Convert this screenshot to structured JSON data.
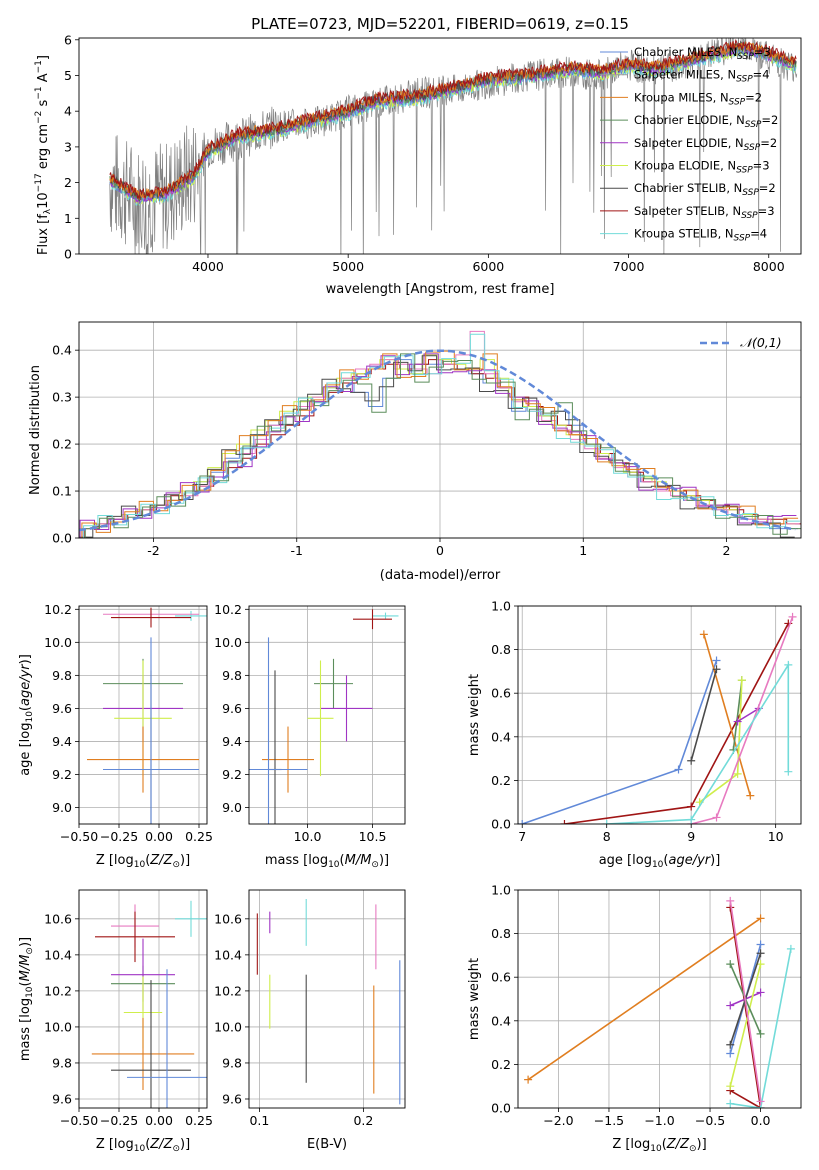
{
  "figure": {
    "title": "PLATE=0723, MJD=52201, FIBERID=0619, z=0.15"
  },
  "colors": {
    "Chabrier MILES": "#6189d8",
    "Salpeter MILES": "#9a9a9a",
    "Kroupa MILES": "#e07e20",
    "Chabrier ELODIE": "#5b8d5b",
    "Salpeter ELODIE": "#a035c4",
    "Kroupa ELODIE": "#cfee4c",
    "Chabrier STELIB": "#4a4a4a",
    "Salpeter STELIB": "#a01515",
    "Kroupa STELIB": "#72dbd9",
    "Pink": "#e77ac0",
    "Data": "#808080"
  },
  "chart_data": [
    {
      "type": "line",
      "title": "PLATE=0723, MJD=52201, FIBERID=0619, z=0.15",
      "xlabel": "wavelength [Angstrom, rest frame]",
      "ylabel": "Flux [f_λ 10^-17 erg cm^-2 s^-1 A^-1]",
      "xlim": [
        3080,
        8230
      ],
      "ylim": [
        0,
        6.05
      ],
      "xticks": [
        4000,
        5000,
        6000,
        7000,
        8000
      ],
      "yticks": [
        0,
        1,
        2,
        3,
        4,
        5,
        6
      ],
      "legend": "top-right",
      "legend_entries": [
        "Chabrier MILES, N_SSP=3",
        "Salpeter MILES, N_SSP=4",
        "Kroupa MILES, N_SSP=2",
        "Chabrier ELODIE, N_SSP=2",
        "Salpeter ELODIE, N_SSP=2",
        "Kroupa ELODIE, N_SSP=3",
        "Chabrier STELIB, N_SSP=2",
        "Salpeter STELIB, N_SSP=3",
        "Kroupa STELIB, N_SSP=4"
      ],
      "series": [
        {
          "name": "data",
          "x": [
            3300,
            3500,
            3700,
            3900,
            4000,
            4200,
            4500,
            4800,
            5000,
            5200,
            5500,
            5800,
            6000,
            6300,
            6600,
            6800,
            7000,
            7200,
            7400,
            7600,
            7800,
            8000,
            8200
          ],
          "y": [
            2.0,
            1.5,
            1.6,
            2.3,
            3.0,
            3.2,
            3.6,
            3.7,
            4.0,
            4.2,
            4.5,
            4.6,
            4.8,
            5.0,
            5.1,
            5.0,
            5.3,
            5.1,
            5.3,
            5.6,
            5.9,
            5.5,
            5.2
          ]
        },
        {
          "name": "model",
          "x": [
            3300,
            3500,
            3700,
            3900,
            4000,
            4200,
            4500,
            4800,
            5000,
            5200,
            5500,
            5800,
            6000,
            6300,
            6600,
            6800,
            7000,
            7200,
            7400,
            7600,
            7800,
            8000,
            8200
          ],
          "y": [
            2.1,
            1.6,
            1.7,
            2.2,
            2.9,
            3.3,
            3.5,
            3.8,
            4.0,
            4.3,
            4.4,
            4.7,
            4.9,
            5.0,
            5.2,
            5.1,
            5.3,
            5.2,
            5.4,
            5.6,
            5.8,
            5.6,
            5.3
          ]
        }
      ]
    },
    {
      "type": "bar",
      "xlabel": "(data-model)/error",
      "ylabel": "Normed distribution",
      "xlim": [
        -2.52,
        2.52
      ],
      "ylim": [
        0,
        0.46
      ],
      "xticks": [
        -2,
        -1,
        0,
        1,
        2
      ],
      "yticks": [
        0.0,
        0.1,
        0.2,
        0.3,
        0.4
      ],
      "grid": true,
      "legend": "top-right",
      "legend_entries": [
        "𝒩(0,1)"
      ],
      "bin_centers": [
        -2.45,
        -2.35,
        -2.25,
        -2.15,
        -2.05,
        -1.95,
        -1.85,
        -1.75,
        -1.65,
        -1.55,
        -1.45,
        -1.35,
        -1.25,
        -1.15,
        -1.05,
        -0.95,
        -0.85,
        -0.75,
        -0.65,
        -0.55,
        -0.45,
        -0.35,
        -0.25,
        -0.15,
        -0.05,
        0.05,
        0.15,
        0.25,
        0.35,
        0.45,
        0.55,
        0.65,
        0.75,
        0.85,
        0.95,
        1.05,
        1.15,
        1.25,
        1.35,
        1.45,
        1.55,
        1.65,
        1.75,
        1.85,
        1.95,
        2.05,
        2.15,
        2.25,
        2.35,
        2.45
      ],
      "series": [
        {
          "name": "Chabrier MILES",
          "values": [
            0.02,
            0.03,
            0.04,
            0.05,
            0.06,
            0.07,
            0.08,
            0.1,
            0.12,
            0.14,
            0.17,
            0.19,
            0.22,
            0.24,
            0.26,
            0.28,
            0.3,
            0.32,
            0.33,
            0.31,
            0.28,
            0.34,
            0.38,
            0.35,
            0.37,
            0.37,
            0.36,
            0.35,
            0.33,
            0.32,
            0.27,
            0.28,
            0.26,
            0.27,
            0.24,
            0.2,
            0.18,
            0.16,
            0.14,
            0.12,
            0.11,
            0.1,
            0.08,
            0.07,
            0.06,
            0.05,
            0.04,
            0.03,
            0.02,
            0.02
          ]
        },
        {
          "name": "Salpeter STELIB",
          "values": [
            0.02,
            0.03,
            0.04,
            0.05,
            0.06,
            0.07,
            0.09,
            0.1,
            0.11,
            0.13,
            0.15,
            0.17,
            0.2,
            0.22,
            0.24,
            0.26,
            0.29,
            0.31,
            0.33,
            0.35,
            0.36,
            0.37,
            0.36,
            0.37,
            0.38,
            0.37,
            0.36,
            0.35,
            0.34,
            0.32,
            0.3,
            0.28,
            0.26,
            0.24,
            0.22,
            0.2,
            0.18,
            0.16,
            0.14,
            0.12,
            0.11,
            0.1,
            0.09,
            0.08,
            0.07,
            0.06,
            0.05,
            0.04,
            0.04,
            0.03
          ]
        },
        {
          "name": "Kroupa ELODIE",
          "values": [
            0.02,
            0.03,
            0.04,
            0.05,
            0.06,
            0.07,
            0.08,
            0.1,
            0.12,
            0.15,
            0.18,
            0.2,
            0.23,
            0.25,
            0.27,
            0.29,
            0.3,
            0.32,
            0.34,
            0.35,
            0.36,
            0.38,
            0.36,
            0.35,
            0.39,
            0.38,
            0.37,
            0.36,
            0.38,
            0.34,
            0.3,
            0.28,
            0.26,
            0.24,
            0.22,
            0.2,
            0.18,
            0.16,
            0.14,
            0.13,
            0.12,
            0.1,
            0.09,
            0.08,
            0.07,
            0.06,
            0.05,
            0.04,
            0.03,
            0.03
          ]
        },
        {
          "name": "Pink",
          "values": [
            0.02,
            0.03,
            0.04,
            0.05,
            0.06,
            0.07,
            0.08,
            0.09,
            0.11,
            0.13,
            0.16,
            0.18,
            0.21,
            0.24,
            0.26,
            0.28,
            0.3,
            0.33,
            0.34,
            0.36,
            0.37,
            0.38,
            0.37,
            0.36,
            0.35,
            0.37,
            0.39,
            0.44,
            0.35,
            0.32,
            0.29,
            0.27,
            0.25,
            0.23,
            0.21,
            0.19,
            0.17,
            0.15,
            0.13,
            0.12,
            0.1,
            0.09,
            0.08,
            0.07,
            0.06,
            0.05,
            0.04,
            0.04,
            0.03,
            0.03
          ]
        }
      ],
      "reference_curve": {
        "name": "𝒩(0,1)",
        "kind": "gaussian",
        "mean": 0,
        "sigma": 1
      }
    },
    {
      "type": "scatter",
      "xlabel": "Z [log10(Z/Z⊙)]",
      "ylabel": "age [log10(age/yr)]",
      "xlim": [
        -0.5,
        0.3
      ],
      "ylim": [
        8.9,
        10.22
      ],
      "xticks": [
        -0.5,
        -0.25,
        0.0,
        0.25
      ],
      "xtick_labels": [
        "−0.50",
        "−0.25",
        "0.00",
        "0.25"
      ],
      "yticks": [
        9.0,
        9.2,
        9.4,
        9.6,
        9.8,
        10.0,
        10.2
      ],
      "grid": true
    },
    {
      "type": "scatter",
      "xlabel": "mass [log10(M/M⊙)]",
      "ylabel": "",
      "xlim": [
        9.55,
        10.75
      ],
      "ylim": [
        8.9,
        10.22
      ],
      "xticks": [
        10.0,
        10.5
      ],
      "xtick_labels": [
        "10.0",
        "10.5"
      ],
      "yticks": [
        9.0,
        9.2,
        9.4,
        9.6,
        9.8,
        10.0,
        10.2
      ],
      "grid": true
    },
    {
      "type": "line",
      "xlabel": "age [log10(age/yr)]",
      "ylabel": "mass weight",
      "xlim": [
        6.95,
        10.3
      ],
      "ylim": [
        0.0,
        1.0
      ],
      "xticks": [
        7,
        8,
        9,
        10
      ],
      "xtick_labels": [
        "7",
        "8",
        "9",
        "10"
      ],
      "yticks": [
        0.0,
        0.2,
        0.4,
        0.6,
        0.8,
        1.0
      ],
      "grid": true,
      "series": [
        {
          "name": "Chabrier MILES",
          "x": [
            7.0,
            8.85,
            9.3
          ],
          "y": [
            0.0,
            0.25,
            0.75
          ]
        },
        {
          "name": "Salpeter STELIB",
          "x": [
            7.5,
            9.0,
            10.15
          ],
          "y": [
            0.0,
            0.08,
            0.92
          ]
        },
        {
          "name": "Kroupa MILES",
          "x": [
            9.15,
            9.7
          ],
          "y": [
            0.87,
            0.13
          ]
        },
        {
          "name": "Chabrier STELIB",
          "x": [
            9.0,
            9.3
          ],
          "y": [
            0.29,
            0.71
          ]
        },
        {
          "name": "Chabrier ELODIE",
          "x": [
            9.5,
            9.6
          ],
          "y": [
            0.34,
            0.66
          ]
        },
        {
          "name": "Kroupa ELODIE",
          "x": [
            9.1,
            9.55,
            9.6
          ],
          "y": [
            0.1,
            0.23,
            0.66
          ]
        },
        {
          "name": "Salpeter ELODIE",
          "x": [
            9.55,
            9.8
          ],
          "y": [
            0.47,
            0.53
          ]
        },
        {
          "name": "Pink",
          "x": [
            9.0,
            9.3,
            10.2
          ],
          "y": [
            0.0,
            0.03,
            0.95
          ]
        },
        {
          "name": "Kroupa STELIB",
          "x": [
            8.0,
            9.0,
            10.15,
            10.15
          ],
          "y": [
            0.0,
            0.02,
            0.73,
            0.24
          ]
        }
      ]
    },
    {
      "type": "scatter",
      "xlabel": "Z [log10(Z/Z⊙)]",
      "ylabel": "mass [log10(M/M⊙)]",
      "xlim": [
        -0.5,
        0.3
      ],
      "ylim": [
        9.55,
        10.76
      ],
      "xticks": [
        -0.5,
        -0.25,
        0.0,
        0.25
      ],
      "xtick_labels": [
        "−0.50",
        "−0.25",
        "0.00",
        "0.25"
      ],
      "yticks": [
        9.6,
        9.8,
        10.0,
        10.2,
        10.4,
        10.6
      ],
      "grid": true
    },
    {
      "type": "scatter",
      "xlabel": "E(B-V)",
      "ylabel": "",
      "xlim": [
        0.09,
        0.24
      ],
      "ylim": [
        9.55,
        10.76
      ],
      "xticks": [
        0.1,
        0.2
      ],
      "xtick_labels": [
        "0.1",
        "0.2"
      ],
      "yticks": [
        9.6,
        9.8,
        10.0,
        10.2,
        10.4,
        10.6
      ],
      "grid": true
    },
    {
      "type": "line",
      "xlabel": "Z [log10(Z/Z⊙)]",
      "ylabel": "mass weight",
      "xlim": [
        -2.4,
        0.4
      ],
      "ylim": [
        0.0,
        1.0
      ],
      "xticks": [
        -2.0,
        -1.5,
        -1.0,
        -0.5,
        0.0
      ],
      "xtick_labels": [
        "−2.0",
        "−1.5",
        "−1.0",
        "−0.5",
        "0.0"
      ],
      "yticks": [
        0.0,
        0.2,
        0.4,
        0.6,
        0.8,
        1.0
      ],
      "grid": true,
      "series": [
        {
          "name": "Kroupa MILES",
          "x": [
            -2.3,
            0.0
          ],
          "y": [
            0.13,
            0.87
          ]
        },
        {
          "name": "Salpeter STELIB",
          "x": [
            -0.3,
            0.0,
            -0.3
          ],
          "y": [
            0.92,
            0.0,
            0.08
          ]
        },
        {
          "name": "Chabrier MILES",
          "x": [
            -0.3,
            0.0
          ],
          "y": [
            0.25,
            0.75
          ]
        },
        {
          "name": "Kroupa STELIB",
          "x": [
            -0.3,
            0.0,
            0.3
          ],
          "y": [
            0.02,
            0.0,
            0.73
          ]
        },
        {
          "name": "Salpeter ELODIE",
          "x": [
            -0.3,
            0.0
          ],
          "y": [
            0.47,
            0.53
          ]
        },
        {
          "name": "Kroupa ELODIE",
          "x": [
            -0.3,
            0.0
          ],
          "y": [
            0.1,
            0.66
          ]
        },
        {
          "name": "Chabrier STELIB",
          "x": [
            -0.3,
            0.0
          ],
          "y": [
            0.29,
            0.71
          ]
        },
        {
          "name": "Chabrier ELODIE",
          "x": [
            -0.3,
            0.0
          ],
          "y": [
            0.66,
            0.34
          ]
        },
        {
          "name": "Pink",
          "x": [
            -0.3,
            0.0
          ],
          "y": [
            0.95,
            0.03
          ]
        }
      ]
    }
  ],
  "errorbars": {
    "age_vs_z": [
      {
        "color": "Kroupa STELIB",
        "x": 0.2,
        "y": 10.16,
        "xerr": 0.1,
        "yerr": 0.03
      },
      {
        "color": "Pink",
        "x": -0.05,
        "y": 10.17,
        "xerr": 0.3,
        "yerr": 0.02
      },
      {
        "color": "Salpeter STELIB",
        "x": -0.05,
        "y": 10.15,
        "xerr": 0.25,
        "yerr": 0.06
      },
      {
        "color": "Chabrier ELODIE",
        "x": -0.1,
        "y": 9.75,
        "xerr": 0.25,
        "yerr": 0.15
      },
      {
        "color": "Salpeter ELODIE",
        "x": -0.1,
        "y": 9.6,
        "xerr": 0.25,
        "yerr": 0.2
      },
      {
        "color": "Kroupa ELODIE",
        "x": -0.1,
        "y": 9.54,
        "xerr": 0.18,
        "yerr": 0.35
      },
      {
        "color": "Kroupa MILES",
        "x": -0.1,
        "y": 9.29,
        "xerr": 0.35,
        "yerr": 0.2
      },
      {
        "color": "Chabrier STELIB",
        "x": -0.05,
        "y": 9.23,
        "xerr": 0.25,
        "yerr": 0.6
      },
      {
        "color": "Chabrier MILES",
        "x": -0.05,
        "y": 9.23,
        "xerr": 0.3,
        "yerr": 0.8
      }
    ],
    "age_vs_mass": [
      {
        "color": "Kroupa STELIB",
        "x": 10.6,
        "y": 10.16,
        "xerr": 0.1,
        "yerr": 0.02
      },
      {
        "color": "Salpeter STELIB",
        "x": 10.5,
        "y": 10.14,
        "xerr": 0.15,
        "yerr": 0.06
      },
      {
        "color": "Chabrier ELODIE",
        "x": 10.2,
        "y": 9.75,
        "xerr": 0.15,
        "yerr": 0.15
      },
      {
        "color": "Salpeter ELODIE",
        "x": 10.3,
        "y": 9.6,
        "xerr": 0.2,
        "yerr": 0.2
      },
      {
        "color": "Kroupa ELODIE",
        "x": 10.1,
        "y": 9.54,
        "xerr": 0.1,
        "yerr": 0.35
      },
      {
        "color": "Kroupa MILES",
        "x": 9.85,
        "y": 9.29,
        "xerr": 0.2,
        "yerr": 0.2
      },
      {
        "color": "Chabrier STELIB",
        "x": 9.75,
        "y": 9.23,
        "xerr": 0.05,
        "yerr": 0.6
      },
      {
        "color": "Chabrier MILES",
        "x": 9.7,
        "y": 9.23,
        "xerr": 0.3,
        "yerr": 0.8
      }
    ],
    "mass_vs_z": [
      {
        "color": "Kroupa STELIB",
        "x": 0.2,
        "y": 10.6,
        "xerr": 0.1,
        "yerr": 0.1
      },
      {
        "color": "Pink",
        "x": -0.15,
        "y": 10.56,
        "xerr": 0.15,
        "yerr": 0.12
      },
      {
        "color": "Salpeter STELIB",
        "x": -0.15,
        "y": 10.5,
        "xerr": 0.25,
        "yerr": 0.14
      },
      {
        "color": "Chabrier ELODIE",
        "x": -0.1,
        "y": 10.24,
        "xerr": 0.2,
        "yerr": 0.1
      },
      {
        "color": "Salpeter ELODIE",
        "x": -0.1,
        "y": 10.29,
        "xerr": 0.2,
        "yerr": 0.2
      },
      {
        "color": "Kroupa ELODIE",
        "x": -0.1,
        "y": 10.08,
        "xerr": 0.12,
        "yerr": 0.2
      },
      {
        "color": "Kroupa MILES",
        "x": -0.1,
        "y": 9.85,
        "xerr": 0.32,
        "yerr": 0.2
      },
      {
        "color": "Chabrier STELIB",
        "x": -0.05,
        "y": 9.76,
        "xerr": 0.25,
        "yerr": 0.5
      },
      {
        "color": "Chabrier MILES",
        "x": 0.05,
        "y": 9.72,
        "xerr": 0.25,
        "yerr": 0.6
      }
    ],
    "mass_vs_ebv": [
      {
        "color": "Kroupa STELIB",
        "x": 0.145,
        "y": 10.58,
        "xerr": 0,
        "yerr": 0.13
      },
      {
        "color": "Pink",
        "x": 0.212,
        "y": 10.5,
        "xerr": 0,
        "yerr": 0.18
      },
      {
        "color": "Salpeter STELIB",
        "x": 0.098,
        "y": 10.46,
        "xerr": 0,
        "yerr": 0.17
      },
      {
        "color": "Salpeter ELODIE",
        "x": 0.11,
        "y": 10.58,
        "xerr": 0,
        "yerr": 0.06
      },
      {
        "color": "Kroupa ELODIE",
        "x": 0.11,
        "y": 10.14,
        "xerr": 0,
        "yerr": 0.15
      },
      {
        "color": "Chabrier STELIB",
        "x": 0.145,
        "y": 9.99,
        "xerr": 0,
        "yerr": 0.3
      },
      {
        "color": "Kroupa MILES",
        "x": 0.21,
        "y": 9.93,
        "xerr": 0,
        "yerr": 0.3
      },
      {
        "color": "Chabrier MILES",
        "x": 0.235,
        "y": 9.97,
        "xerr": 0,
        "yerr": 0.4
      }
    ]
  }
}
